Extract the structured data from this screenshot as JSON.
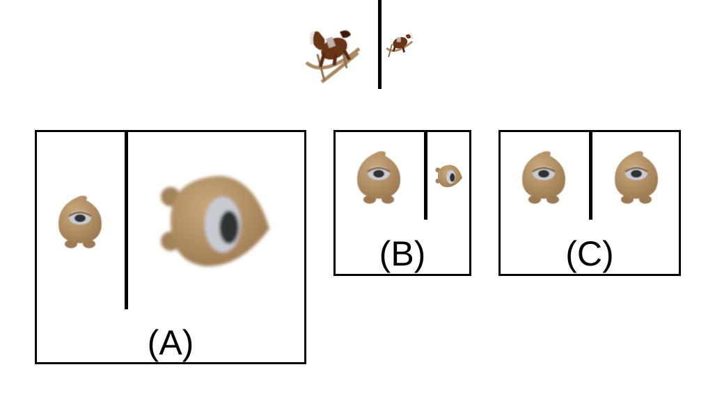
{
  "reference": {
    "left_object": "rocking-horse-large",
    "right_object": "rocking-horse-small"
  },
  "options": [
    {
      "label": "(A)",
      "left_object": "one-eyed-creature-front",
      "right_object": "one-eyed-creature-side-enlarged"
    },
    {
      "label": "(B)",
      "left_object": "one-eyed-creature-front",
      "right_object": "one-eyed-creature-side-small"
    },
    {
      "label": "(C)",
      "left_object": "one-eyed-creature-front",
      "right_object": "one-eyed-creature-front"
    }
  ],
  "colors": {
    "creature_body": "#b8966a",
    "creature_shade": "#9c7a52",
    "eye_white": "#c8ccd2",
    "pupil": "#2f3133",
    "horse_body": "#6b3418",
    "horse_dark": "#3d1d0e",
    "rocker_wood": "#a88962",
    "frame": "#000000"
  }
}
